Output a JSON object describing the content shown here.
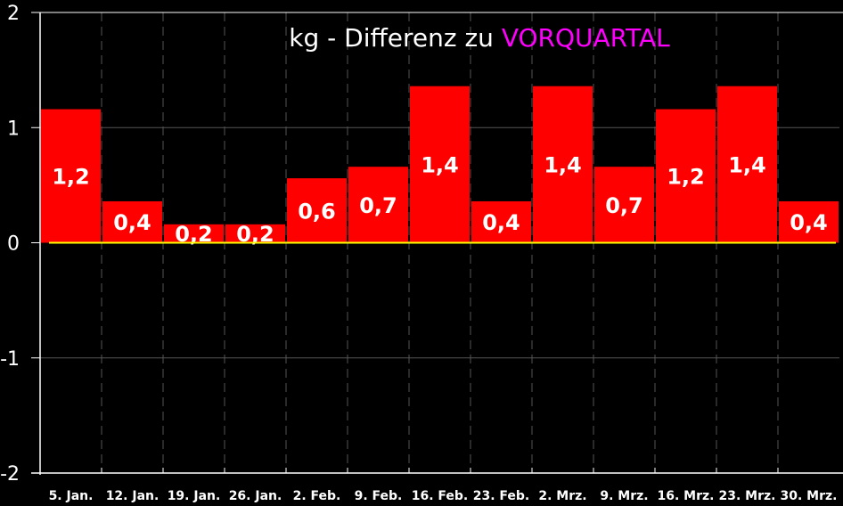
{
  "chart_data": {
    "type": "bar",
    "title": "kg - Differenz zu",
    "title_highlight": "VORQUARTAL",
    "categories": [
      "5. Jan.",
      "12. Jan.",
      "19. Jan.",
      "26. Jan.",
      "2. Feb.",
      "9. Feb.",
      "16. Feb.",
      "23. Feb.",
      "2. Mrz.",
      "9. Mrz.",
      "16. Mrz.",
      "23. Mrz.",
      "30. Mrz."
    ],
    "values": [
      1.16,
      0.36,
      0.16,
      0.16,
      0.56,
      0.66,
      1.36,
      0.36,
      1.36,
      0.66,
      1.16,
      1.36,
      0.36
    ],
    "data_labels": [
      "1,2",
      "0,4",
      "0,2",
      "0,2",
      "0,6",
      "0,7",
      "1,4",
      "0,4",
      "1,4",
      "0,7",
      "1,2",
      "1,4",
      "0,4"
    ],
    "ylim": [
      -2,
      2
    ],
    "yticks": [
      "2",
      "1",
      "0",
      "-1",
      "-2"
    ],
    "grid": true,
    "xlabel": "",
    "ylabel": "",
    "colors": {
      "bar": "#ff0000",
      "zero_line": "#ffff00",
      "title_highlight": "#ff00ff",
      "background": "#000000",
      "grid": "#555555"
    }
  }
}
